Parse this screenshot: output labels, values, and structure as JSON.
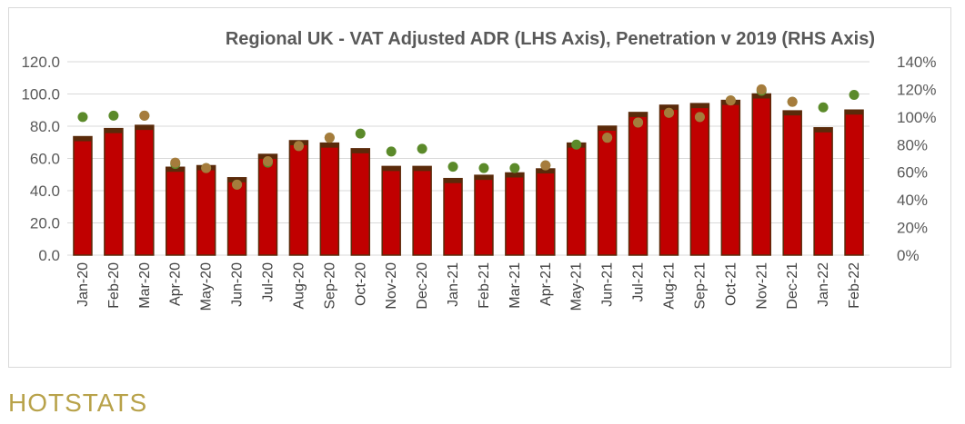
{
  "brand": {
    "logo_text": "HOTSTATS"
  },
  "colors": {
    "bar_fill": "#c00000",
    "bar_edge": "#5a2a0a",
    "marker_green": "#5b8a2a",
    "marker_brown": "#a57c3c",
    "grid": "#d9d9d9",
    "axis_text": "#595959"
  },
  "chart_data": {
    "type": "bar",
    "title": "Regional UK - VAT Adjusted ADR (LHS Axis), Penetration v 2019 (RHS Axis)",
    "categories": [
      "Jan-20",
      "Feb-20",
      "Mar-20",
      "Apr-20",
      "May-20",
      "Jun-20",
      "Jul-20",
      "Aug-20",
      "Sep-20",
      "Oct-20",
      "Nov-20",
      "Dec-20",
      "Jan-21",
      "Feb-21",
      "Mar-21",
      "Apr-21",
      "May-21",
      "Jun-21",
      "Jul-21",
      "Aug-21",
      "Sep-21",
      "Oct-21",
      "Nov-21",
      "Dec-21",
      "Jan-22",
      "Feb-22"
    ],
    "y_left": {
      "min": 0,
      "max": 120,
      "ticks": [
        "0.0",
        "20.0",
        "40.0",
        "60.0",
        "80.0",
        "100.0",
        "120.0"
      ]
    },
    "y_right": {
      "min": 0,
      "max": 140,
      "ticks": [
        "0%",
        "20%",
        "40%",
        "60%",
        "80%",
        "100%",
        "120%",
        "140%"
      ]
    },
    "gridlines": true,
    "series": [
      {
        "kind": "bar",
        "axis": "left",
        "values": [
          73.5,
          78.5,
          80.5,
          54.5,
          55.5,
          48,
          62.5,
          71,
          69.5,
          66,
          55,
          55,
          47.5,
          49.5,
          51,
          53.5,
          69.5,
          80,
          88.5,
          93,
          94,
          96,
          100,
          89.5,
          79,
          90
        ]
      },
      {
        "kind": "point",
        "axis": "right",
        "color": "green",
        "values": [
          100,
          101,
          101,
          66,
          63,
          51,
          67,
          79,
          85,
          88,
          75,
          77,
          64,
          63,
          63,
          65,
          80,
          85,
          96,
          103,
          100,
          112,
          119,
          111,
          107,
          116
        ]
      },
      {
        "kind": "point",
        "axis": "right",
        "color": "brown",
        "values": [
          null,
          null,
          101,
          67,
          63,
          51,
          68,
          79,
          85,
          null,
          null,
          null,
          null,
          null,
          null,
          65,
          null,
          85,
          96,
          103,
          100,
          112,
          120,
          111,
          null,
          null
        ]
      }
    ]
  }
}
